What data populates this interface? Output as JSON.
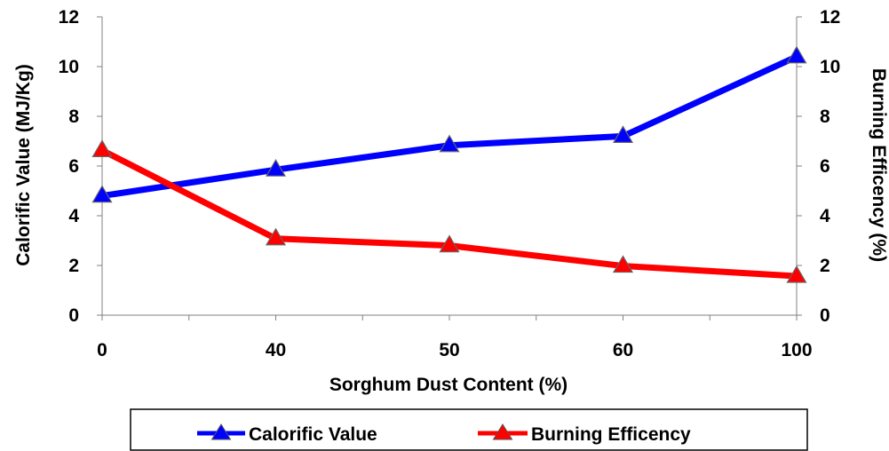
{
  "chart_data": {
    "type": "line",
    "categories": [
      "0",
      "40",
      "50",
      "60",
      "100"
    ],
    "xlabel": "Sorghum Dust Content (%)",
    "ylabel_left": "Calorific Value (MJ/Kg)",
    "ylabel_right": "Burning Efficency (%)",
    "ylim_left": [
      0,
      12
    ],
    "ylim_right": [
      0,
      12
    ],
    "y_ticks": [
      "0",
      "2",
      "4",
      "6",
      "8",
      "10",
      "12"
    ],
    "grid": false,
    "legend_position": "bottom",
    "series": [
      {
        "name": "Calorific Value",
        "axis": "left",
        "color": "#0000ff",
        "marker": "triangle",
        "values": [
          4.8,
          5.85,
          6.83,
          7.2,
          10.4
        ]
      },
      {
        "name": "Burning Efficency",
        "axis": "right",
        "color": "#ff0000",
        "marker": "triangle",
        "values": [
          6.63,
          3.08,
          2.8,
          1.98,
          1.57
        ]
      }
    ]
  }
}
